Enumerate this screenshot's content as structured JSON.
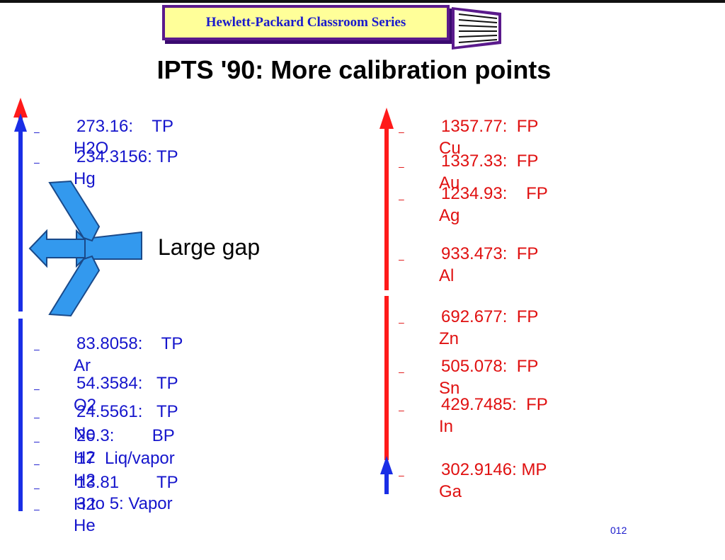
{
  "banner": {
    "text": "Hewlett-Packard Classroom Series"
  },
  "title": "IPTS '90:  More calibration points",
  "gap_label": "Large gap",
  "slide_number": "012",
  "low_points": [
    {
      "dash": "–",
      "value": "273.16:    TP",
      "substance": "H2O"
    },
    {
      "dash": "–",
      "value": "234.3156: TP",
      "substance": "Hg"
    },
    {
      "dash": "–",
      "value": "83.8058:    TP",
      "substance": "Ar"
    },
    {
      "dash": "–",
      "value": "54.3584:   TP",
      "substance": "O2"
    },
    {
      "dash": "–",
      "value": "24.5561:   TP",
      "substance": "Ne"
    },
    {
      "dash": "–",
      "value": "20.3:        BP",
      "substance": "H2"
    },
    {
      "dash": "–",
      "value": "17  Liq/vapor",
      "substance": "H2"
    },
    {
      "dash": "–",
      "value": "13.81        TP",
      "substance": "H2"
    },
    {
      "dash": "–",
      "value": "3 to 5: Vapor",
      "substance": "He"
    }
  ],
  "high_points": [
    {
      "dash": "–",
      "value": "1357.77:  FP",
      "substance": "Cu"
    },
    {
      "dash": "–",
      "value": "1337.33:  FP",
      "substance": "Au"
    },
    {
      "dash": "–",
      "value": "1234.93:    FP",
      "substance": "Ag"
    },
    {
      "dash": "–",
      "value": "933.473:  FP",
      "substance": "Al"
    },
    {
      "dash": "–",
      "value": "692.677:  FP",
      "substance": "Zn"
    },
    {
      "dash": "–",
      "value": "505.078:  FP",
      "substance": "Sn"
    },
    {
      "dash": "–",
      "value": "429.7485:  FP",
      "substance": "In"
    },
    {
      "dash": "–",
      "value": "302.9146: MP",
      "substance": "Ga"
    }
  ],
  "colors": {
    "low_text": "#1515cc",
    "high_text": "#e01010",
    "arrow_blue": "#1a2ee6",
    "arrow_red": "#ff1a1a",
    "gap_arrow": "#3399ee"
  }
}
